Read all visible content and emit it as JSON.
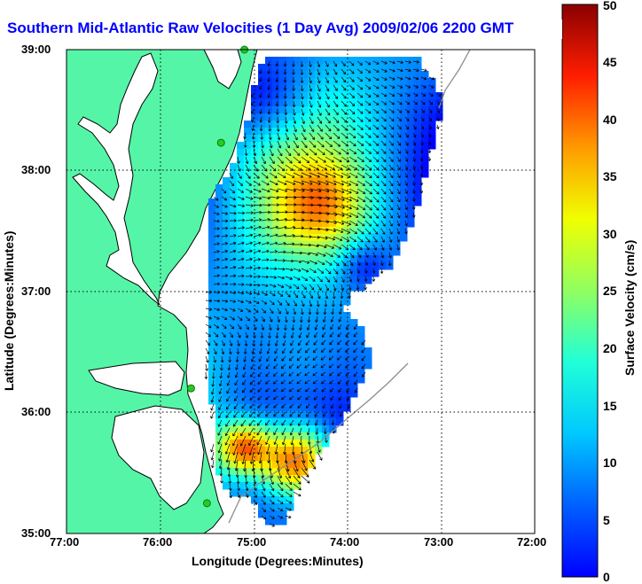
{
  "title": "Southern Mid-Atlantic Raw Velocities (1 Day Avg) 2009/02/06 2200 GMT",
  "axes": {
    "xlabel": "Longitude (Degrees:Minutes)",
    "ylabel": "Latitude (Degrees:Minutes)",
    "xticks": [
      "77:00",
      "76:00",
      "75:00",
      "74:00",
      "73:00",
      "72:00"
    ],
    "yticks": [
      "39:00",
      "38:00",
      "37:00",
      "36:00",
      "35:00"
    ],
    "xlim": [
      -77,
      -72
    ],
    "ylim": [
      35,
      39
    ],
    "grid": true
  },
  "colorbar": {
    "label": "Surface Velocity (cm/s)",
    "ticks": [
      "0",
      "5",
      "10",
      "15",
      "20",
      "25",
      "30",
      "35",
      "40",
      "45",
      "50"
    ],
    "range": [
      0,
      50
    ],
    "colormap": "jet"
  },
  "colors": {
    "title": "#0000ff",
    "land": "#55f5a7",
    "coast_line": "#000000",
    "bathymetry": "#8c8c8c",
    "arrows": "#000000",
    "stations": "#22cc22"
  },
  "stations": [
    {
      "lon": -75.1,
      "lat": 39.0
    },
    {
      "lon": -75.35,
      "lat": 38.23
    },
    {
      "lon": -75.67,
      "lat": 36.2
    },
    {
      "lon": -75.5,
      "lat": 35.25
    }
  ]
}
